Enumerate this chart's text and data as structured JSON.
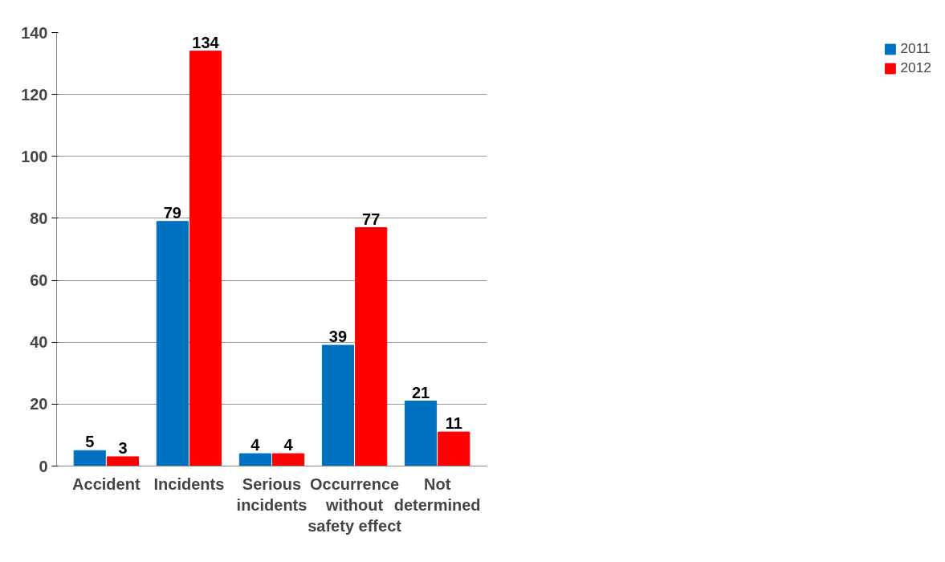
{
  "chart_data": {
    "type": "bar",
    "categories": [
      "Accident",
      "Incidents",
      "Serious\nincidents",
      "Occurrence\nwithout\nsafety effect",
      "Not\ndetermined"
    ],
    "series": [
      {
        "name": "2011",
        "color": "#0070c0",
        "values": [
          5,
          79,
          4,
          39,
          21
        ]
      },
      {
        "name": "2012",
        "color": "#ff0000",
        "values": [
          3,
          134,
          4,
          77,
          11
        ]
      }
    ],
    "ylim": [
      0,
      140
    ],
    "yticks": [
      0,
      20,
      40,
      60,
      80,
      100,
      120,
      140
    ],
    "grid": "y",
    "legend": "right",
    "data_labels": true
  }
}
